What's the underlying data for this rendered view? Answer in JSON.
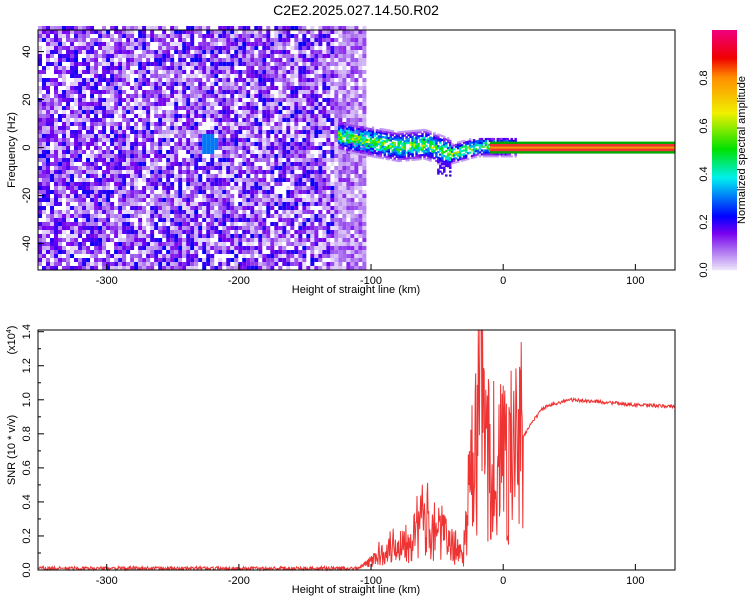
{
  "chart_data": [
    {
      "type": "heatmap",
      "title": "C2E2.2025.027.14.50.R02",
      "xlabel": "Height of straight line (km)",
      "ylabel": "Frequency (Hz)",
      "xlim": [
        -352,
        130
      ],
      "ylim": [
        -51,
        49
      ],
      "xticks": [
        -300,
        -200,
        -100,
        0,
        100
      ],
      "yticks": [
        -40,
        -20,
        0,
        20,
        40
      ],
      "noise_region_x": [
        -352,
        -105
      ],
      "signal_band": {
        "x": [
          -125,
          130
        ],
        "center_hz": 0,
        "halfwidth_hz": 1
      },
      "signal_trace_hz": [
        [
          -120,
          4
        ],
        [
          -100,
          2
        ],
        [
          -80,
          0
        ],
        [
          -60,
          1
        ],
        [
          -40,
          -3
        ],
        [
          -20,
          0
        ],
        [
          0,
          0
        ],
        [
          130,
          0
        ]
      ],
      "colorbar": {
        "label": "Normalized spectral amplitude",
        "range": [
          0,
          1
        ],
        "ticks": [
          "0.0",
          "0.2",
          "0.4",
          "0.6",
          "0.8"
        ]
      }
    },
    {
      "type": "line",
      "xlabel": "Height of straight line (km)",
      "ylabel": "SNR (10 * v/v)",
      "multiplier": "(x10",
      "multiplier_exp": "4",
      "xlim": [
        -352,
        130
      ],
      "ylim": [
        0,
        1.41
      ],
      "xticks": [
        -300,
        -200,
        -100,
        0,
        100
      ],
      "yticks": [
        "0.0",
        "0.2",
        "0.4",
        "0.6",
        "0.8",
        "1.0",
        "1.2",
        "1.4"
      ],
      "series": [
        {
          "name": "SNR",
          "color": "#ee3333",
          "x": [
            -352,
            -110,
            -100,
            -90,
            -80,
            -70,
            -60,
            -50,
            -40,
            -30,
            -25,
            -20,
            -17,
            -15,
            -10,
            -5,
            0,
            10,
            20,
            30,
            40,
            50,
            70,
            100,
            130
          ],
          "y": [
            0.01,
            0.01,
            0.05,
            0.12,
            0.15,
            0.2,
            0.3,
            0.25,
            0.15,
            0.1,
            0.5,
            0.7,
            1.45,
            0.8,
            0.7,
            0.6,
            0.65,
            0.7,
            0.85,
            0.95,
            0.98,
            1.0,
            0.99,
            0.97,
            0.96
          ]
        }
      ]
    }
  ]
}
